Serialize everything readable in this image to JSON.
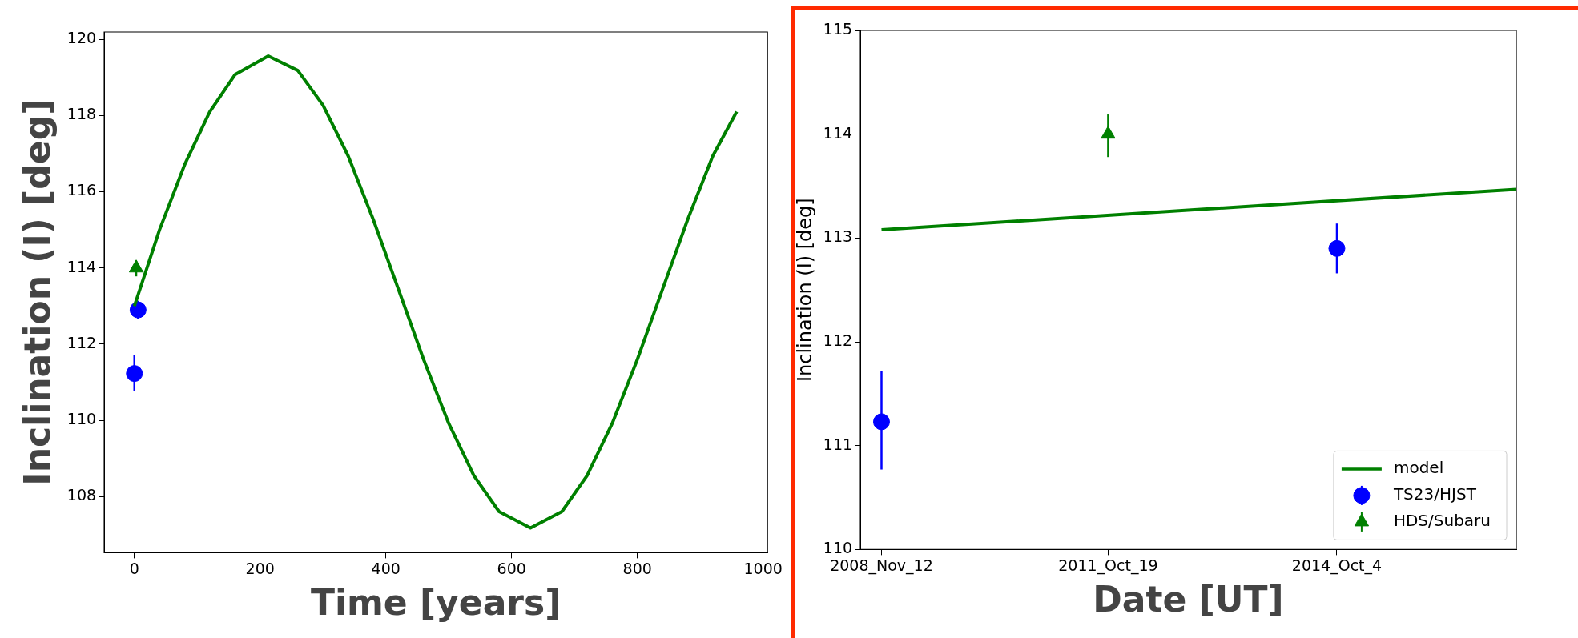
{
  "chart_data": [
    {
      "type": "scatter",
      "xlabel": "Time [years]",
      "ylabel": "Inclination (I) [deg]",
      "xlim": [
        -48,
        1007
      ],
      "ylim": [
        106.53,
        120.19
      ],
      "xticks": [
        0,
        200,
        400,
        600,
        800,
        1000
      ],
      "yticks": [
        108,
        110,
        112,
        114,
        116,
        118,
        120
      ],
      "grid": false,
      "legend": false,
      "series": [
        {
          "type": "line",
          "marker": "none",
          "line_style": "solid",
          "color": "#008000",
          "x": [
            0,
            40,
            80,
            120,
            160,
            213,
            260,
            300,
            340,
            380,
            420,
            460,
            500,
            540,
            580,
            630,
            680,
            720,
            760,
            800,
            840,
            880,
            920,
            958
          ],
          "values": [
            113.0,
            115.0,
            116.71,
            118.1,
            119.07,
            119.56,
            119.18,
            118.27,
            116.94,
            115.27,
            113.44,
            111.6,
            109.92,
            108.55,
            107.61,
            107.18,
            107.61,
            108.55,
            109.92,
            111.6,
            113.44,
            115.27,
            116.94,
            118.1
          ]
        },
        {
          "marker": "circle",
          "color": "#0000ff",
          "x": [
            0,
            5.89
          ],
          "values": [
            111.23,
            112.9
          ],
          "errors": [
            [
              110.77,
              111.72
            ],
            [
              112.66,
              113.14
            ]
          ]
        },
        {
          "marker": "triangle",
          "color": "#008000",
          "x": [
            2.93
          ],
          "values": [
            114.0
          ],
          "errors": [
            [
              113.78,
              114.19
            ]
          ]
        }
      ]
    },
    {
      "type": "scatter",
      "xlabel": "Date [UT]",
      "ylabel": "Inclination (I) [deg]",
      "xlim": [
        "2008-08-04",
        "2017-01-29"
      ],
      "ylim": [
        110,
        115
      ],
      "xticks": [
        {
          "value": "2008-11-12",
          "label": "2008_Nov_12"
        },
        {
          "value": "2011-10-19",
          "label": "2011_Oct_19"
        },
        {
          "value": "2014-10-04",
          "label": "2014_Oct_4"
        }
      ],
      "yticks": [
        110,
        111,
        112,
        113,
        114,
        115
      ],
      "grid": false,
      "legend": "bottom right",
      "series": [
        {
          "type": "line",
          "name": "model",
          "marker": "none",
          "line_style": "solid",
          "color": "#008000",
          "x": [
            "2008-11-12",
            "2017-01-29"
          ],
          "values": [
            113.08,
            113.47
          ]
        },
        {
          "name": "TS23/HJST",
          "marker": "circle",
          "color": "#0000ff",
          "x": [
            "2008-11-12",
            "2014-10-04"
          ],
          "values": [
            111.23,
            112.9
          ],
          "errors": [
            [
              110.77,
              111.72
            ],
            [
              112.66,
              113.14
            ]
          ]
        },
        {
          "name": "HDS/Subaru",
          "marker": "triangle",
          "color": "#008000",
          "x": [
            "2011-10-19"
          ],
          "values": [
            114.0
          ],
          "errors": [
            [
              113.78,
              114.19
            ]
          ]
        }
      ]
    }
  ]
}
